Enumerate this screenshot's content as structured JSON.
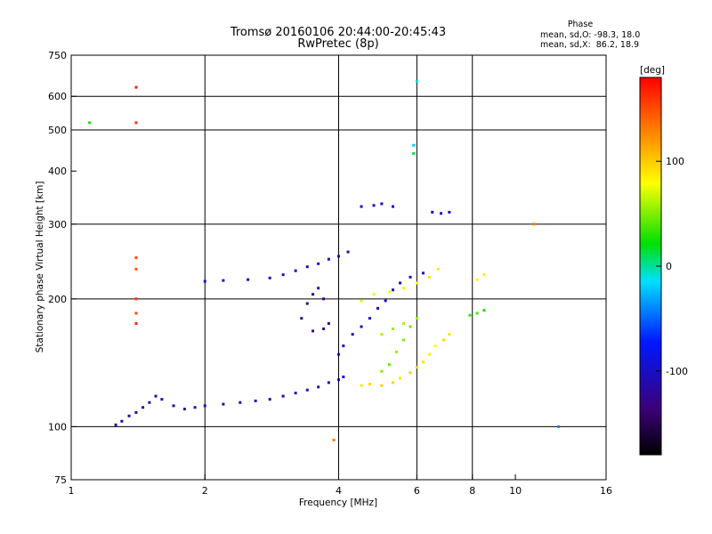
{
  "chart_data": {
    "type": "scatter",
    "title": "Tromsø 20160106 20:44:00-20:45:43",
    "subtitle": "RwPretec (8p)",
    "info": {
      "heading": "Phase",
      "line1": "mean, sd,O: -98.3, 18.0",
      "line2": "mean, sd,X:  86.2, 18.9"
    },
    "xlabel": "Frequency [MHz]",
    "ylabel": "Stationary phase Virtual Height [km]",
    "x_scale": "log",
    "y_scale": "log",
    "xlim": [
      1,
      16
    ],
    "ylim": [
      75,
      750
    ],
    "x_ticks": [
      1,
      2,
      4,
      6,
      8,
      10,
      16
    ],
    "y_ticks": [
      75,
      100,
      200,
      300,
      400,
      500,
      600,
      750
    ],
    "grid_x": [
      2,
      4,
      6,
      8
    ],
    "grid_y": [
      100,
      200,
      300,
      500,
      600
    ],
    "grid": true,
    "colorbar": {
      "label": "[deg]",
      "range": [
        -180,
        180
      ],
      "ticks": [
        100,
        0,
        -100
      ],
      "colormap": "rainbow"
    },
    "series": [
      {
        "points": [
          [
            1.26,
            101,
            -120
          ],
          [
            1.3,
            103,
            -115
          ],
          [
            1.35,
            106,
            -110
          ],
          [
            1.4,
            108,
            -118
          ],
          [
            1.45,
            111,
            -108
          ],
          [
            1.5,
            114,
            -112
          ],
          [
            1.55,
            118,
            -105
          ],
          [
            1.6,
            116,
            -110
          ],
          [
            1.7,
            112,
            -115
          ],
          [
            1.8,
            110,
            -120
          ],
          [
            1.9,
            111,
            -110
          ],
          [
            2.0,
            112,
            -105
          ],
          [
            2.2,
            113,
            -108
          ],
          [
            2.4,
            114,
            -112
          ],
          [
            2.6,
            115,
            -110
          ],
          [
            2.8,
            116,
            -115
          ],
          [
            3.0,
            118,
            -110
          ],
          [
            3.2,
            120,
            -105
          ],
          [
            3.4,
            122,
            -100
          ],
          [
            3.6,
            124,
            -108
          ],
          [
            3.8,
            127,
            -110
          ],
          [
            4.0,
            129,
            -95
          ],
          [
            4.1,
            131,
            -90
          ],
          [
            2.0,
            220,
            -100
          ],
          [
            2.2,
            221,
            -95
          ],
          [
            2.5,
            222,
            -100
          ],
          [
            2.8,
            224,
            -105
          ],
          [
            3.0,
            228,
            -90
          ],
          [
            3.2,
            233,
            -110
          ],
          [
            3.4,
            238,
            -95
          ],
          [
            3.6,
            242,
            -100
          ],
          [
            3.8,
            248,
            -105
          ],
          [
            4.0,
            252,
            -98
          ],
          [
            4.2,
            258,
            -110
          ],
          [
            3.3,
            180,
            -130
          ],
          [
            3.4,
            195,
            -140
          ],
          [
            3.5,
            205,
            -125
          ],
          [
            3.6,
            212,
            -110
          ],
          [
            3.7,
            200,
            -135
          ],
          [
            3.5,
            168,
            -130
          ],
          [
            3.7,
            170,
            -140
          ],
          [
            3.8,
            175,
            -125
          ],
          [
            4.0,
            148,
            -100
          ],
          [
            4.1,
            155,
            -95
          ],
          [
            4.3,
            165,
            -105
          ],
          [
            4.5,
            172,
            -100
          ],
          [
            4.7,
            180,
            -95
          ],
          [
            4.9,
            190,
            -110
          ],
          [
            5.1,
            198,
            -100
          ],
          [
            5.3,
            210,
            -95
          ],
          [
            5.5,
            218,
            -100
          ],
          [
            5.8,
            225,
            -98
          ],
          [
            6.2,
            230,
            -105
          ],
          [
            4.5,
            330,
            -90
          ],
          [
            4.8,
            332,
            -95
          ],
          [
            5.0,
            335,
            -100
          ],
          [
            5.3,
            330,
            -90
          ],
          [
            6.5,
            320,
            -95
          ],
          [
            6.8,
            318,
            -100
          ],
          [
            7.1,
            320,
            -90
          ]
        ]
      },
      {
        "points": [
          [
            4.5,
            125,
            90
          ],
          [
            4.7,
            126,
            95
          ],
          [
            5.0,
            125,
            100
          ],
          [
            5.3,
            127,
            95
          ],
          [
            5.5,
            130,
            90
          ],
          [
            5.8,
            134,
            100
          ],
          [
            6.0,
            138,
            95
          ],
          [
            6.2,
            142,
            90
          ],
          [
            6.4,
            148,
            85
          ],
          [
            6.6,
            155,
            80
          ],
          [
            6.9,
            160,
            95
          ],
          [
            7.1,
            165,
            90
          ],
          [
            4.5,
            198,
            70
          ],
          [
            4.8,
            205,
            75
          ],
          [
            5.2,
            208,
            80
          ],
          [
            5.6,
            212,
            85
          ],
          [
            6.0,
            218,
            80
          ],
          [
            6.4,
            225,
            90
          ],
          [
            6.7,
            235,
            85
          ],
          [
            5.0,
            165,
            60
          ],
          [
            5.3,
            170,
            55
          ],
          [
            5.6,
            175,
            60
          ],
          [
            5.0,
            135,
            50
          ],
          [
            5.2,
            140,
            45
          ],
          [
            5.4,
            150,
            55
          ],
          [
            5.6,
            160,
            50
          ],
          [
            5.8,
            172,
            45
          ],
          [
            6.0,
            180,
            55
          ],
          [
            7.9,
            183,
            30
          ],
          [
            8.2,
            185,
            35
          ],
          [
            8.5,
            188,
            25
          ],
          [
            8.2,
            222,
            80
          ],
          [
            8.5,
            228,
            85
          ]
        ]
      },
      {
        "points": [
          [
            1.1,
            520,
            25
          ],
          [
            1.4,
            630,
            170
          ],
          [
            1.4,
            520,
            160
          ],
          [
            1.4,
            250,
            150
          ],
          [
            1.4,
            235,
            145
          ],
          [
            1.4,
            200,
            160
          ],
          [
            1.4,
            185,
            150
          ],
          [
            1.4,
            175,
            165
          ],
          [
            3.9,
            93,
            130
          ],
          [
            6.0,
            650,
            -10
          ],
          [
            12.5,
            100,
            -40
          ],
          [
            11.0,
            300,
            130
          ],
          [
            5.9,
            460,
            -20
          ],
          [
            5.9,
            440,
            10
          ]
        ]
      }
    ]
  }
}
